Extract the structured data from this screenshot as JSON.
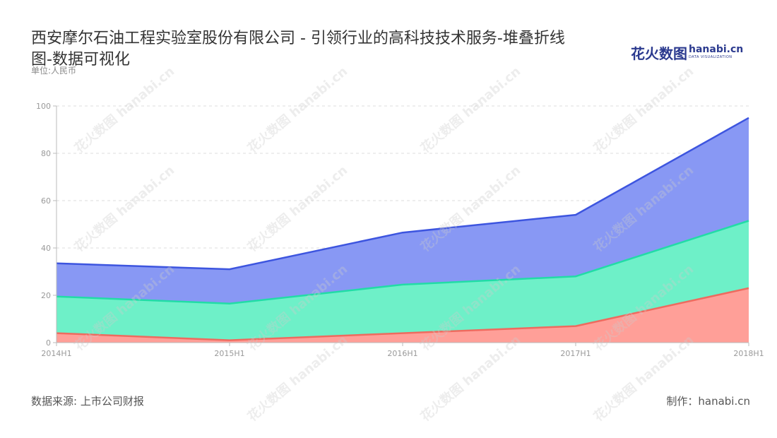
{
  "title": "西安摩尔石油工程实验室股份有限公司 -  引领行业的高科技技术服务-堆叠折线图-数据可视化",
  "unit": "单位:人民币",
  "logo": {
    "cn": "花火数图",
    "en": "hanabi.cn",
    "sub": "DATA VISUALIZATION"
  },
  "footer": {
    "source": "数据来源: 上市公司财报",
    "maker": "制作：hanabi.cn"
  },
  "watermark_text": "花火数图 hanabi.cn",
  "colors": {
    "series_bottom_fill": "#ff9f98",
    "series_bottom_line": "#ee6b5f",
    "series_middle_fill": "#6ef0c8",
    "series_middle_line": "#22dca6",
    "series_top_fill": "#8898f4",
    "series_top_line": "#3d55df",
    "grid": "#dddddd",
    "axis": "#bbbbbb"
  },
  "chart_data": {
    "type": "area",
    "stacked": true,
    "categories": [
      "2014H1",
      "2015H1",
      "2016H1",
      "2017H1",
      "2018H1"
    ],
    "ylim": [
      0,
      100
    ],
    "yticks": [
      0,
      20,
      40,
      60,
      80,
      100
    ],
    "grid": true,
    "series": [
      {
        "name": "",
        "values": [
          4,
          1,
          4,
          7,
          23
        ]
      },
      {
        "name": "",
        "values": [
          15.5,
          15.5,
          20.5,
          21,
          28.5
        ]
      },
      {
        "name": "",
        "values": [
          14,
          14.5,
          22,
          26,
          43.5
        ]
      }
    ]
  }
}
